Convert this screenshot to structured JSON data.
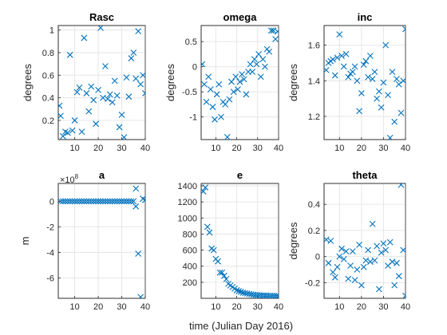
{
  "figure": {
    "xlabel": "time (Julian Day 2016)"
  },
  "chart_data": [
    {
      "type": "scatter",
      "title": "Rasc",
      "xlabel": "",
      "ylabel": "degrees",
      "xlim": [
        3,
        40
      ],
      "ylim": [
        0.03,
        1.04
      ],
      "xticks": [
        10,
        20,
        30,
        40
      ],
      "yticks": [
        0.2,
        0.4,
        0.6,
        0.8,
        1
      ],
      "ytick_labels": [
        "0.2",
        "0.4",
        "0.6",
        "0.8",
        "1"
      ],
      "grid": true,
      "marker": "x",
      "color": "#0072BD",
      "x": [
        3.5,
        4,
        5,
        6,
        7,
        8,
        9,
        10,
        11,
        12,
        13,
        14,
        15,
        16,
        17,
        18,
        19,
        20,
        21,
        22,
        23,
        24,
        25,
        26,
        27,
        28,
        29,
        30,
        31,
        32,
        33,
        34,
        35,
        36,
        37,
        38,
        39,
        40
      ],
      "y": [
        0.33,
        0.24,
        0.06,
        0.1,
        0.09,
        0.78,
        0.11,
        0.2,
        0.45,
        0.49,
        0.1,
        0.93,
        0.44,
        0.28,
        0.5,
        0.38,
        0.17,
        0.47,
        1.02,
        0.4,
        0.68,
        0.39,
        0.43,
        0.36,
        0.55,
        0.42,
        0.14,
        0.25,
        0.05,
        0.58,
        0.41,
        0.75,
        0.8,
        0.57,
        0.99,
        0.52,
        0.6,
        0.44
      ]
    },
    {
      "type": "scatter",
      "title": "omega",
      "xlabel": "",
      "ylabel": "degrees",
      "xlim": [
        3,
        40
      ],
      "ylim": [
        -1.45,
        0.82
      ],
      "xticks": [
        10,
        20,
        30,
        40
      ],
      "yticks": [
        -1,
        -0.5,
        0,
        0.5
      ],
      "ytick_labels": [
        "-1",
        "-0.5",
        "0",
        "0.5"
      ],
      "grid": true,
      "marker": "x",
      "color": "#0072BD",
      "x": [
        3.5,
        4.5,
        5.5,
        6.5,
        7.5,
        8.5,
        9.5,
        10.5,
        11.5,
        12.5,
        13.5,
        14.5,
        15.5,
        16.5,
        17.5,
        18.5,
        19.5,
        20.5,
        21.5,
        22.5,
        23.5,
        24.5,
        25.5,
        26.5,
        27.5,
        28.5,
        29.5,
        30.5,
        31.5,
        32.5,
        33.5,
        34.5,
        35.5,
        36.5,
        37.5,
        38.5,
        39.5
      ],
      "y": [
        0.05,
        -0.35,
        -0.7,
        -0.2,
        -0.45,
        -0.8,
        -1.05,
        -0.55,
        -0.35,
        -1.0,
        -0.7,
        -0.75,
        -1.4,
        -0.65,
        -0.3,
        -0.5,
        -0.2,
        -0.45,
        -0.3,
        -0.15,
        -0.25,
        -0.55,
        -0.1,
        0.05,
        -0.1,
        0.15,
        0.05,
        0.25,
        -0.2,
        0.15,
        0.0,
        0.35,
        0.3,
        0.72,
        0.72,
        0.55,
        0.7
      ]
    },
    {
      "type": "scatter",
      "title": "inc",
      "xlabel": "",
      "ylabel": "degrees",
      "xlim": [
        3,
        40
      ],
      "ylim": [
        1.07,
        1.71
      ],
      "xticks": [
        10,
        20,
        30,
        40
      ],
      "yticks": [
        1.2,
        1.4,
        1.6
      ],
      "ytick_labels": [
        "1.2",
        "1.4",
        "1.6"
      ],
      "grid": true,
      "marker": "x",
      "color": "#0072BD",
      "x": [
        4,
        5,
        6,
        7,
        8,
        9,
        10,
        11,
        12,
        13,
        14,
        15,
        16,
        17,
        18,
        19,
        20,
        21,
        22,
        23,
        24,
        25,
        26,
        27,
        28,
        29,
        30,
        31,
        32,
        33,
        34,
        35,
        36,
        37,
        38,
        39,
        40
      ],
      "y": [
        1.46,
        1.5,
        1.51,
        1.52,
        1.43,
        1.53,
        1.66,
        1.54,
        1.48,
        1.55,
        1.42,
        1.44,
        1.45,
        1.48,
        1.4,
        1.23,
        1.33,
        1.49,
        1.51,
        1.42,
        1.54,
        1.41,
        1.45,
        1.3,
        1.34,
        1.25,
        1.39,
        1.6,
        1.32,
        1.08,
        1.45,
        1.17,
        1.41,
        1.38,
        1.22,
        1.4,
        1.69
      ]
    },
    {
      "type": "scatter",
      "title": "a",
      "xlabel": "",
      "ylabel": "m",
      "xlim": [
        3,
        40
      ],
      "ylim": [
        -7.6,
        1.4
      ],
      "y_exponent_label": "×10",
      "y_exponent_power": "8",
      "xticks": [
        10,
        20,
        30,
        40
      ],
      "yticks": [
        0,
        -2,
        -4,
        -6
      ],
      "ytick_labels": [
        "0",
        "-2",
        "-4",
        "-6"
      ],
      "grid": true,
      "marker": "x",
      "color": "#0072BD",
      "x": [
        4,
        5,
        6,
        7,
        8,
        9,
        10,
        11,
        12,
        13,
        14,
        15,
        16,
        17,
        18,
        19,
        20,
        21,
        22,
        23,
        24,
        25,
        26,
        27,
        28,
        29,
        30,
        31,
        32,
        33,
        34,
        35,
        36,
        36,
        37,
        38,
        39,
        40
      ],
      "y": [
        0,
        0,
        0,
        0,
        0,
        0,
        0,
        0,
        0,
        0,
        0,
        0,
        0,
        0,
        0,
        0,
        0,
        0,
        0,
        0,
        0,
        0,
        0,
        0,
        0,
        0,
        0,
        0,
        0,
        0,
        0,
        0,
        1.0,
        -0.4,
        -4.1,
        -7.5,
        0.2,
        0.1
      ]
    },
    {
      "type": "scatter",
      "title": "e",
      "xlabel": "",
      "ylabel": "",
      "xlim": [
        3,
        40
      ],
      "ylim": [
        0,
        1430
      ],
      "xticks": [
        10,
        20,
        30,
        40
      ],
      "yticks": [
        200,
        400,
        600,
        800,
        1000,
        1200,
        1400
      ],
      "ytick_labels": [
        "200",
        "400",
        "600",
        "800",
        "1000",
        "1200",
        "1400"
      ],
      "grid": true,
      "marker": "x",
      "color": "#0072BD",
      "x": [
        4,
        5,
        6,
        7,
        8,
        9,
        10,
        11,
        12,
        13,
        14,
        15,
        16,
        17,
        18,
        19,
        20,
        21,
        22,
        23,
        24,
        25,
        26,
        27,
        28,
        29,
        30,
        31,
        32,
        33,
        34,
        35,
        36,
        37,
        38,
        39,
        40
      ],
      "y": [
        1330,
        1380,
        890,
        820,
        620,
        600,
        490,
        460,
        320,
        320,
        280,
        240,
        180,
        160,
        140,
        120,
        100,
        90,
        80,
        70,
        65,
        60,
        55,
        50,
        45,
        42,
        40,
        38,
        36,
        34,
        33,
        32,
        31,
        30,
        29,
        28,
        28
      ]
    },
    {
      "type": "scatter",
      "title": "theta",
      "xlabel": "",
      "ylabel": "degrees",
      "xlim": [
        3,
        40
      ],
      "ylim": [
        -0.32,
        0.56
      ],
      "xticks": [
        10,
        20,
        30,
        40
      ],
      "yticks": [
        -0.2,
        0,
        0.2,
        0.4
      ],
      "ytick_labels": [
        "-0.2",
        "0",
        "0.2",
        "0.4"
      ],
      "grid": true,
      "marker": "x",
      "color": "#0072BD",
      "x": [
        4,
        5,
        6,
        7,
        8,
        9,
        10,
        11,
        12,
        13,
        14,
        15,
        16,
        17,
        18,
        19,
        20,
        21,
        22,
        23,
        24,
        25,
        26,
        27,
        28,
        29,
        30,
        31,
        32,
        33,
        34,
        35,
        36,
        37,
        38,
        39,
        40
      ],
      "y": [
        0.13,
        -0.05,
        0.12,
        -0.12,
        -0.16,
        -0.08,
        0.0,
        0.06,
        -0.02,
        0.04,
        -0.17,
        -0.07,
        0.04,
        -0.18,
        -0.1,
        0.09,
        -0.22,
        -0.08,
        -0.03,
        0.05,
        -0.04,
        0.25,
        -0.03,
        0.08,
        -0.25,
        0.03,
        0.1,
        0.05,
        -0.07,
        0.11,
        -0.04,
        -0.22,
        -0.05,
        -0.15,
        0.55,
        0.05,
        -0.3
      ]
    }
  ]
}
